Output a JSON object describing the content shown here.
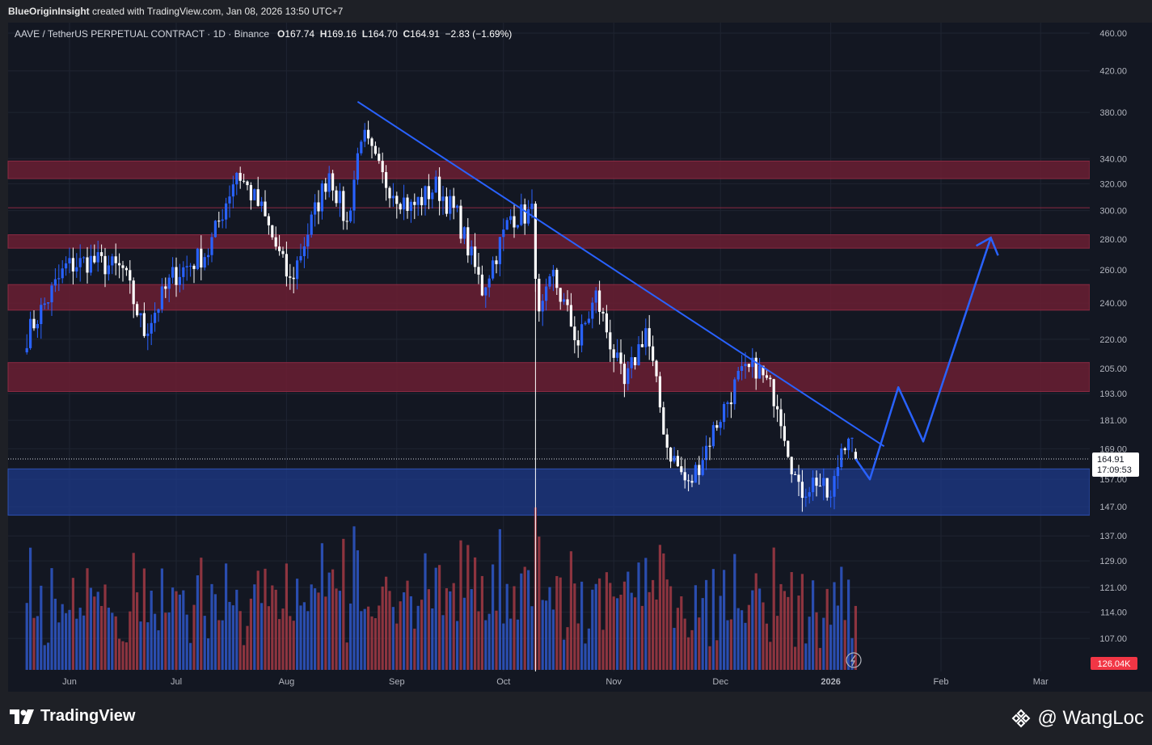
{
  "header": {
    "author": "BlueOriginInsight",
    "created_with": "created with TradingView.com, Jan 08, 2026 13:50 UTC+7"
  },
  "legend": {
    "symbol": "AAVE / TetherUS PERPETUAL CONTRACT · 1D · Binance",
    "o_label": "O",
    "o": "167.74",
    "h_label": "H",
    "h": "169.16",
    "l_label": "L",
    "l": "164.70",
    "c_label": "C",
    "c": "164.91",
    "change": "−2.83 (−1.69%)"
  },
  "price_tag": {
    "price": "164.91",
    "countdown": "17:09:53"
  },
  "volume_tag": "126.04K",
  "brand": "TradingView",
  "watermark": "@ WangLoc",
  "colors": {
    "background": "#131722",
    "up": "#2962ff",
    "down": "#ffffff",
    "zone_red": "#6b1e32",
    "zone_blue": "#1e3a8a",
    "trendline": "#2962ff",
    "vol_up": "#2f57c8",
    "vol_down": "#a33a44"
  },
  "chart_data": {
    "type": "candlestick",
    "scale": "log",
    "y_ticks": [
      "460.00",
      "420.00",
      "380.00",
      "340.00",
      "320.00",
      "300.00",
      "280.00",
      "260.00",
      "240.00",
      "220.00",
      "205.00",
      "193.00",
      "181.00",
      "169.00",
      "157.00",
      "147.00",
      "137.00",
      "129.00",
      "121.00",
      "114.00",
      "107.00"
    ],
    "x_ticks": [
      "Jun",
      "Jul",
      "Aug",
      "Sep",
      "Oct",
      "Nov",
      "Dec",
      "2026",
      "Feb",
      "Mar"
    ],
    "x_tick_dates": [
      "2025-06-01",
      "2025-07-01",
      "2025-08-01",
      "2025-09-01",
      "2025-10-01",
      "2025-11-01",
      "2025-12-01",
      "2026-01-01",
      "2026-02-01",
      "2026-03-01"
    ],
    "resistance_zones": [
      [
        324,
        338
      ],
      [
        274,
        283
      ],
      [
        236,
        251
      ],
      [
        194,
        208
      ]
    ],
    "reference_line": 302,
    "support_zone": [
      144,
      161
    ],
    "trendline": [
      [
        "2025-08-21",
        390
      ],
      [
        "2026-01-16",
        170
      ]
    ],
    "projection": [
      [
        "2026-01-08",
        164.9
      ],
      [
        "2026-01-12",
        157
      ],
      [
        "2026-01-20",
        196
      ],
      [
        "2026-01-27",
        172
      ],
      [
        "2026-02-15",
        281
      ]
    ],
    "key_prices": [
      [
        "2025-05-20",
        222
      ],
      [
        "2025-05-31",
        262
      ],
      [
        "2025-06-07",
        266
      ],
      [
        "2025-06-16",
        260
      ],
      [
        "2025-06-22",
        224
      ],
      [
        "2025-06-30",
        256
      ],
      [
        "2025-07-10",
        272
      ],
      [
        "2025-07-18",
        330
      ],
      [
        "2025-07-25",
        300
      ],
      [
        "2025-08-02",
        252
      ],
      [
        "2025-08-13",
        330
      ],
      [
        "2025-08-18",
        290
      ],
      [
        "2025-08-22",
        362
      ],
      [
        "2025-08-28",
        324
      ],
      [
        "2025-09-05",
        302
      ],
      [
        "2025-09-12",
        318
      ],
      [
        "2025-09-18",
        296
      ],
      [
        "2025-09-25",
        248
      ],
      [
        "2025-10-03",
        296
      ],
      [
        "2025-10-09",
        298
      ],
      [
        "2025-10-11",
        230
      ],
      [
        "2025-10-15",
        256
      ],
      [
        "2025-10-22",
        218
      ],
      [
        "2025-10-27",
        244
      ],
      [
        "2025-11-04",
        196
      ],
      [
        "2025-11-10",
        226
      ],
      [
        "2025-11-16",
        170
      ],
      [
        "2025-11-22",
        154
      ],
      [
        "2025-11-30",
        180
      ],
      [
        "2025-12-06",
        200
      ],
      [
        "2025-12-11",
        206
      ],
      [
        "2025-12-17",
        190
      ],
      [
        "2025-12-23",
        152
      ],
      [
        "2025-12-28",
        157
      ],
      [
        "2026-01-01",
        149
      ],
      [
        "2026-01-04",
        170
      ],
      [
        "2026-01-06",
        176
      ],
      [
        "2026-01-08",
        164.91
      ]
    ]
  }
}
